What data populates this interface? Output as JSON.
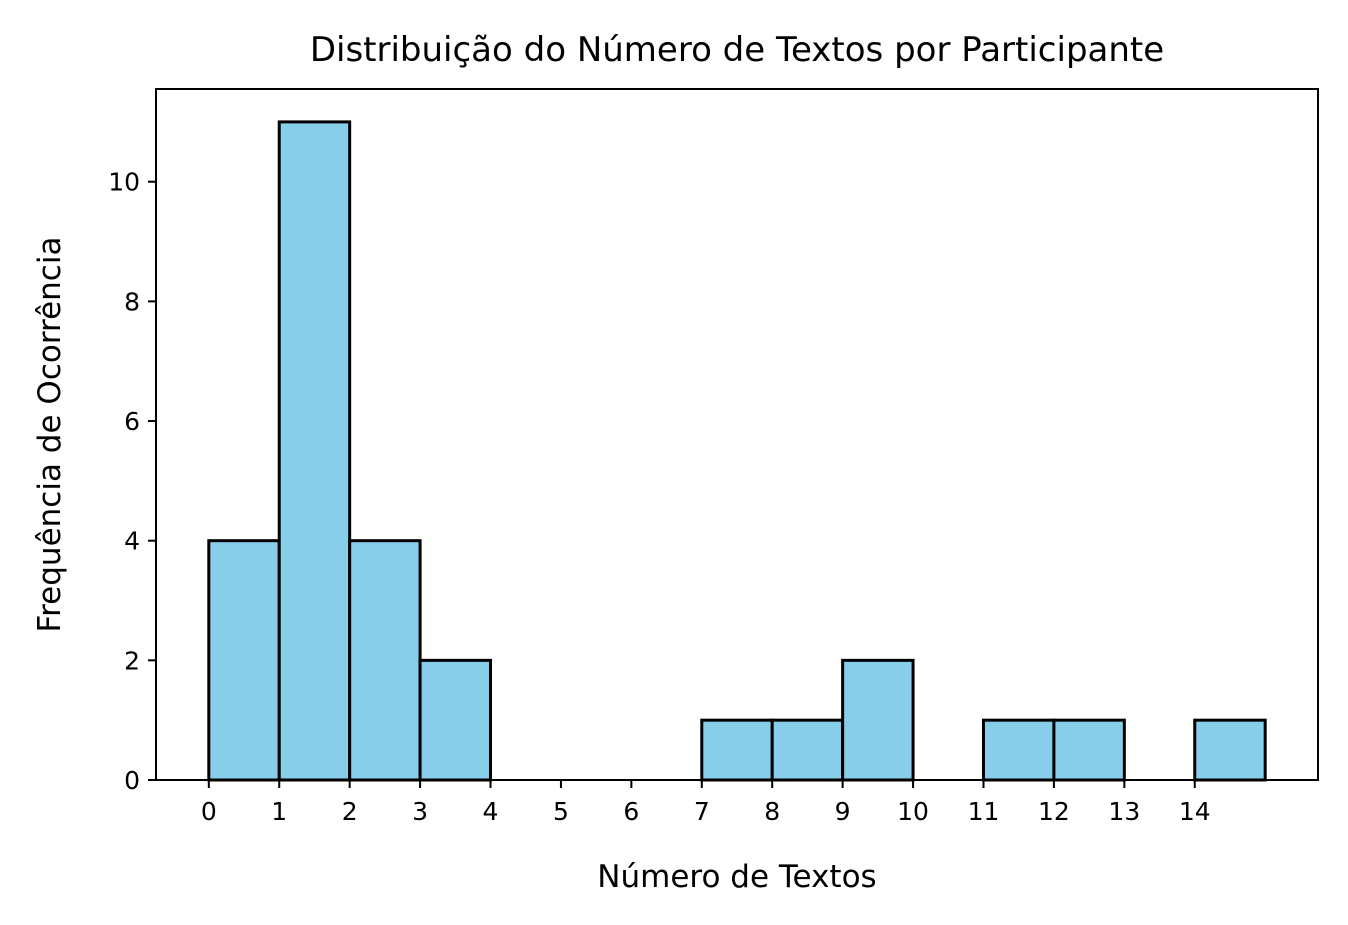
{
  "chart_data": {
    "type": "bar",
    "title": "Distribuição do Número de Textos por Participante",
    "xlabel": "Número de Textos",
    "ylabel": "Frequência de Ocorrência",
    "bin_edges": [
      0,
      1,
      2,
      3,
      4,
      5,
      6,
      7,
      8,
      9,
      10,
      11,
      12,
      13,
      14,
      15
    ],
    "values": [
      4,
      11,
      4,
      2,
      0,
      0,
      0,
      1,
      1,
      2,
      0,
      1,
      1,
      0,
      1
    ],
    "x_ticks": [
      "0",
      "1",
      "2",
      "3",
      "4",
      "5",
      "6",
      "7",
      "8",
      "9",
      "10",
      "11",
      "12",
      "13",
      "14"
    ],
    "y_ticks": [
      "0",
      "2",
      "4",
      "6",
      "8",
      "10"
    ],
    "xlim": [
      -0.75,
      15.75
    ],
    "ylim": [
      0,
      11.55
    ],
    "grid": false,
    "legend": "none",
    "bar_color": "#87CEEB",
    "edge_color": "#000000"
  }
}
